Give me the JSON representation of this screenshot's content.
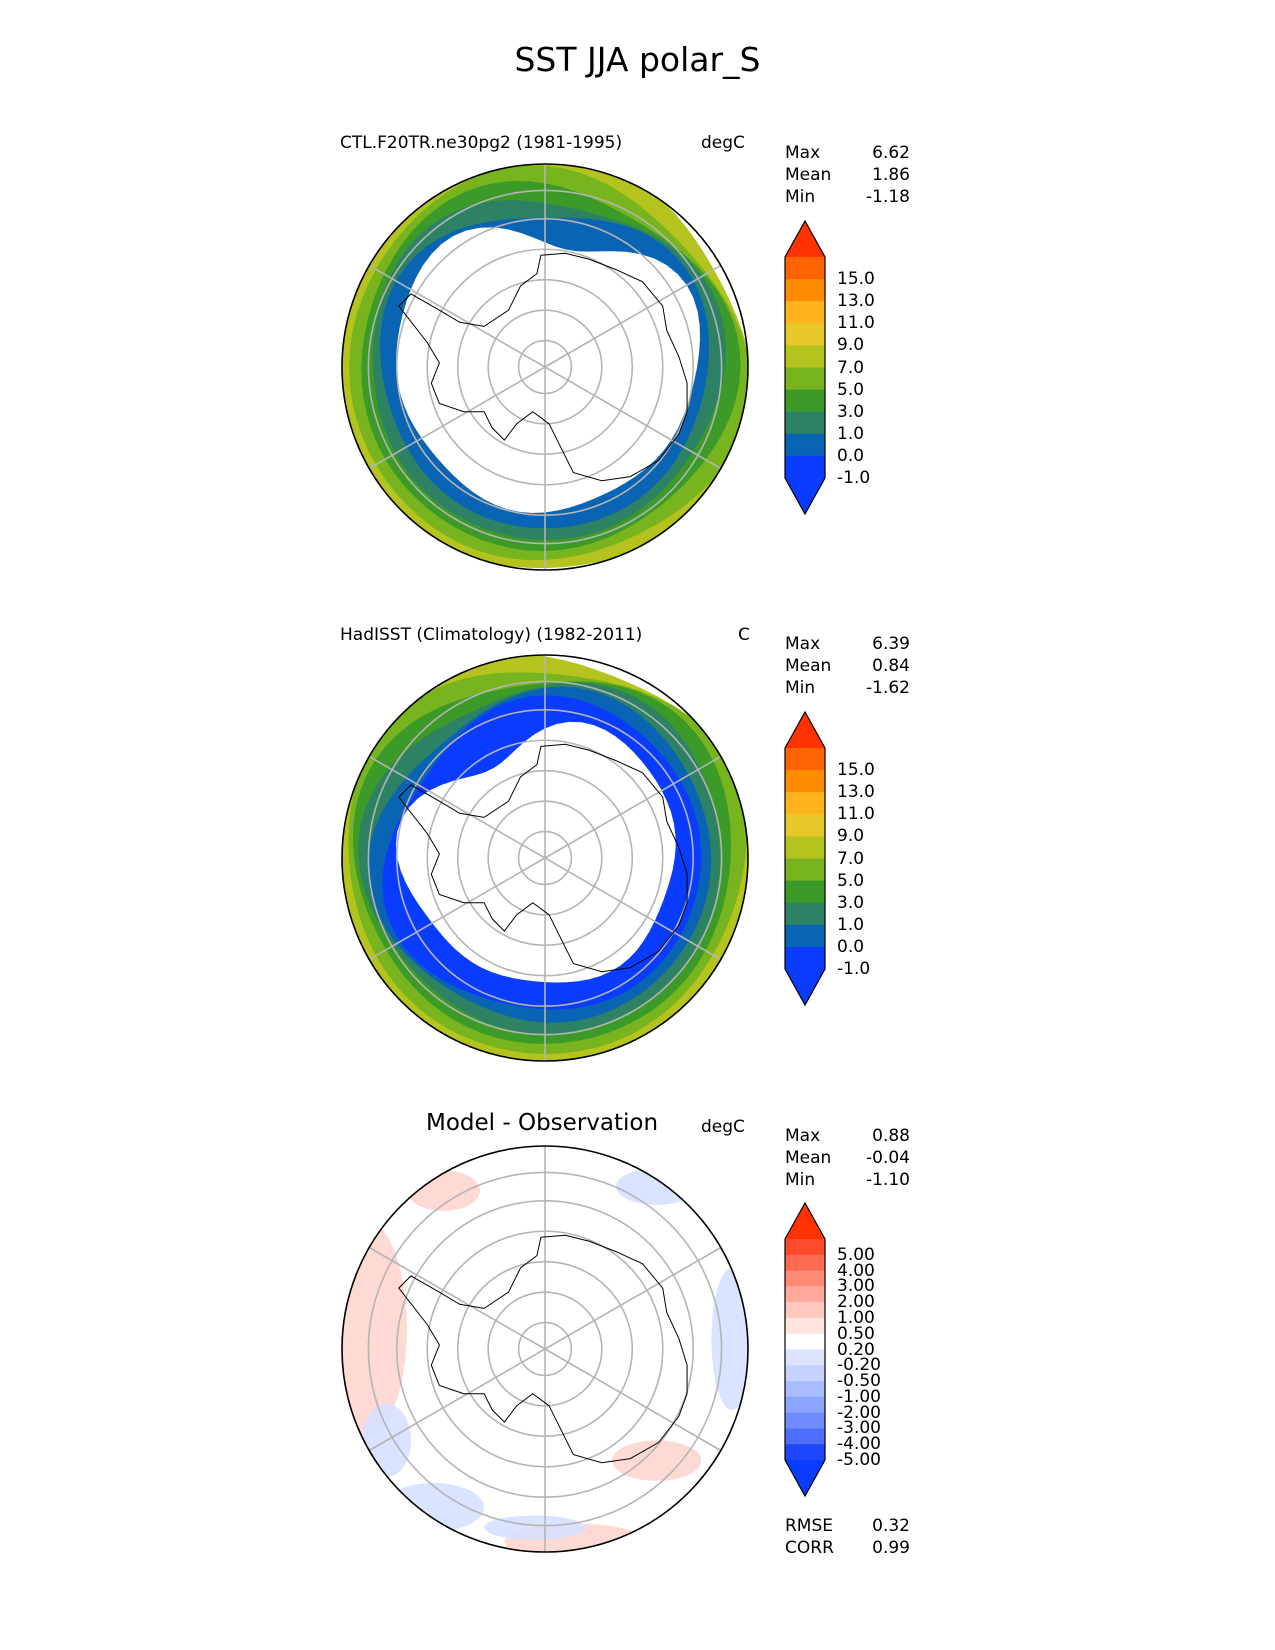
{
  "figure": {
    "title": "SST JJA polar_S"
  },
  "chart_data": [
    {
      "type": "heatmap",
      "projection": "South Polar Stereographic",
      "title": "CTL.F20TR.ne30pg2 (1981-1995)",
      "units": "degC",
      "stats": {
        "max_label": "Max",
        "max": "6.62",
        "mean_label": "Mean",
        "mean": "1.86",
        "min_label": "Min",
        "min": "-1.18"
      },
      "colorbar": {
        "extend": "both",
        "ticks": [
          "15.0",
          "13.0",
          "11.0",
          "9.0",
          "7.0",
          "5.0",
          "3.0",
          "1.0",
          "0.0",
          "-1.0"
        ],
        "colors": [
          "#ff3200",
          "#ff6400",
          "#ff8c00",
          "#ffb41e",
          "#e6c828",
          "#b4c31e",
          "#78b41e",
          "#3c9b28",
          "#2d8264",
          "#0a64b4",
          "#0a3cff",
          "#0a3cff"
        ]
      },
      "field_levels": [
        "#b4c31e",
        "#78b41e",
        "#3c9b28",
        "#2d8264",
        "#0a64b4"
      ]
    },
    {
      "type": "heatmap",
      "projection": "South Polar Stereographic",
      "title": "HadISST (Climatology) (1982-2011)",
      "units": "C",
      "stats": {
        "max_label": "Max",
        "max": "6.39",
        "mean_label": "Mean",
        "mean": "0.84",
        "min_label": "Min",
        "min": "-1.62"
      },
      "colorbar": {
        "extend": "both",
        "ticks": [
          "15.0",
          "13.0",
          "11.0",
          "9.0",
          "7.0",
          "5.0",
          "3.0",
          "1.0",
          "0.0",
          "-1.0"
        ],
        "colors": [
          "#ff3200",
          "#ff6400",
          "#ff8c00",
          "#ffb41e",
          "#e6c828",
          "#b4c31e",
          "#78b41e",
          "#3c9b28",
          "#2d8264",
          "#0a64b4",
          "#0a3cff",
          "#0a3cff"
        ]
      },
      "field_levels": [
        "#b4c31e",
        "#78b41e",
        "#3c9b28",
        "#2d8264",
        "#0a64b4",
        "#0a3cff"
      ]
    },
    {
      "type": "heatmap",
      "projection": "South Polar Stereographic",
      "title": "Model - Observation",
      "units": "degC",
      "stats": {
        "max_label": "Max",
        "max": "0.88",
        "mean_label": "Mean",
        "mean": "-0.04",
        "min_label": "Min",
        "min": "-1.10"
      },
      "colorbar": {
        "extend": "both",
        "ticks": [
          "5.00",
          "4.00",
          "3.00",
          "2.00",
          "1.00",
          "0.50",
          "0.20",
          "-0.20",
          "-0.50",
          "-1.00",
          "-2.00",
          "-3.00",
          "-4.00",
          "-5.00"
        ],
        "colors": [
          "#ff3200",
          "#ff4a2e",
          "#ff6a50",
          "#ff8a75",
          "#ffaa9a",
          "#ffc8bf",
          "#ffe4df",
          "#ffffff",
          "#dde4ff",
          "#c6d2ff",
          "#a9bcff",
          "#8ca5ff",
          "#6e8cff",
          "#4b6eff",
          "#1e46ff",
          "#0a3cff"
        ]
      },
      "field_levels": [
        "#ffd6cf",
        "#d6e0ff"
      ],
      "metrics": {
        "rmse_label": "RMSE",
        "rmse": "0.32",
        "corr_label": "CORR",
        "corr": "0.99"
      }
    }
  ]
}
